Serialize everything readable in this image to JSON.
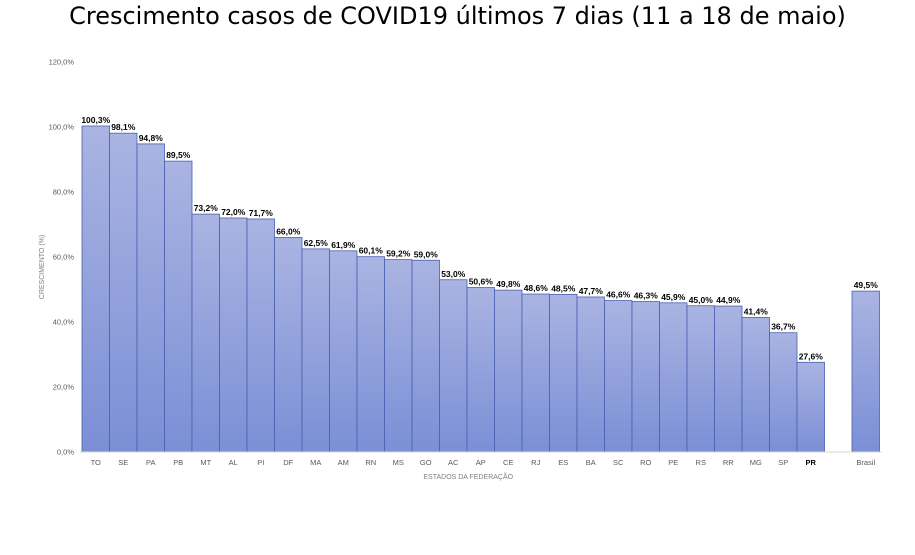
{
  "chart_data": {
    "type": "bar",
    "title": "Crescimento casos de COVID19 últimos 7 dias (11 a 18 de maio)",
    "xlabel": "ESTADOS DA FEDERAÇÃO",
    "ylabel": "CRESCIMENTO (%)",
    "ylim": [
      0,
      120
    ],
    "yticks": [
      "0,0%",
      "20,0%",
      "40,0%",
      "60,0%",
      "80,0%",
      "100,0%",
      "120,0%"
    ],
    "grid": false,
    "legend": "none",
    "bar_color_top": "#aab4e2",
    "bar_color_bottom": "#7b8fd6",
    "bar_stroke": "#4a5fb0",
    "categories": [
      "TO",
      "SE",
      "PA",
      "PB",
      "MT",
      "AL",
      "PI",
      "DF",
      "MA",
      "AM",
      "RN",
      "MS",
      "GO",
      "AC",
      "AP",
      "CE",
      "RJ",
      "ES",
      "BA",
      "SC",
      "RO",
      "PE",
      "RS",
      "RR",
      "MG",
      "SP",
      "PR",
      "Brasil"
    ],
    "values": [
      100.3,
      98.1,
      94.8,
      89.5,
      73.2,
      72.0,
      71.7,
      66.0,
      62.5,
      61.9,
      60.1,
      59.2,
      59.0,
      53.0,
      50.6,
      49.8,
      48.6,
      48.5,
      47.7,
      46.6,
      46.3,
      45.9,
      45.0,
      44.9,
      41.4,
      36.7,
      27.6,
      49.5
    ],
    "labels": [
      "100,3%",
      "98,1%",
      "94,8%",
      "89,5%",
      "73,2%",
      "72,0%",
      "71,7%",
      "66,0%",
      "62,5%",
      "61,9%",
      "60,1%",
      "59,2%",
      "59,0%",
      "53,0%",
      "50,6%",
      "49,8%",
      "48,6%",
      "48,5%",
      "47,7%",
      "46,6%",
      "46,3%",
      "45,9%",
      "45,0%",
      "44,9%",
      "41,4%",
      "36,7%",
      "27,6%",
      "49,5%"
    ],
    "highlighted_categories": [
      "PR"
    ]
  }
}
